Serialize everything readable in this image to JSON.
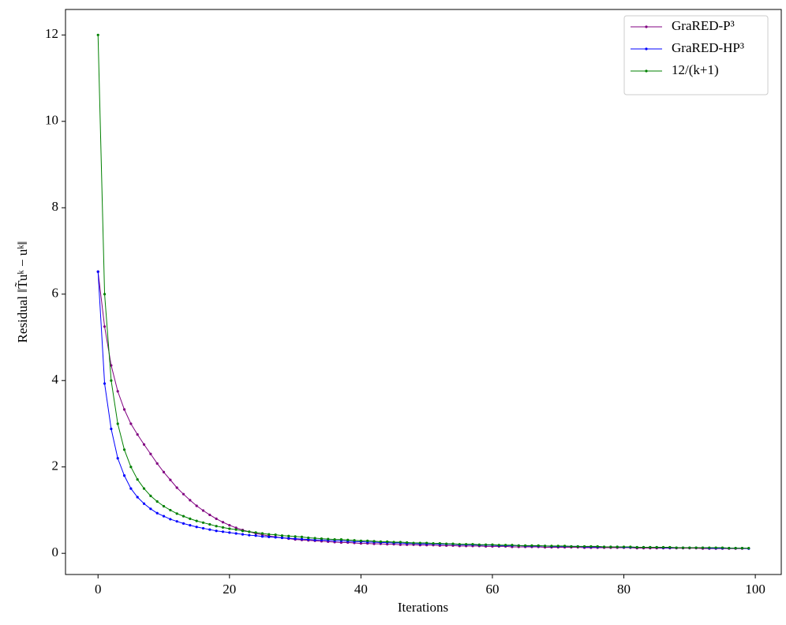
{
  "chart_data": {
    "type": "line",
    "x_label": "Iterations",
    "y_label": "Residual ‖T̃uᵏ − uᵏ‖",
    "x": [
      0,
      1,
      2,
      3,
      4,
      5,
      6,
      7,
      8,
      9,
      10,
      11,
      12,
      13,
      14,
      15,
      16,
      17,
      18,
      19,
      20,
      21,
      22,
      23,
      24,
      25,
      26,
      27,
      28,
      29,
      30,
      31,
      32,
      33,
      34,
      35,
      36,
      37,
      38,
      39,
      40,
      41,
      42,
      43,
      44,
      45,
      46,
      47,
      48,
      49,
      50,
      51,
      52,
      53,
      54,
      55,
      56,
      57,
      58,
      59,
      60,
      61,
      62,
      63,
      64,
      65,
      66,
      67,
      68,
      69,
      70,
      71,
      72,
      73,
      74,
      75,
      76,
      77,
      78,
      79,
      80,
      81,
      82,
      83,
      84,
      85,
      86,
      87,
      88,
      89,
      90,
      91,
      92,
      93,
      94,
      95,
      96,
      97,
      98,
      99
    ],
    "series": [
      {
        "name": "GraRED-P³",
        "color": "#800080",
        "values": [
          6.52,
          5.25,
          4.35,
          3.75,
          3.33,
          3.0,
          2.75,
          2.52,
          2.3,
          2.08,
          1.88,
          1.7,
          1.52,
          1.37,
          1.23,
          1.1,
          0.99,
          0.89,
          0.8,
          0.72,
          0.65,
          0.59,
          0.54,
          0.5,
          0.46,
          0.43,
          0.4,
          0.38,
          0.36,
          0.34,
          0.32,
          0.31,
          0.3,
          0.29,
          0.28,
          0.27,
          0.26,
          0.25,
          0.25,
          0.24,
          0.23,
          0.23,
          0.22,
          0.22,
          0.21,
          0.21,
          0.2,
          0.2,
          0.2,
          0.19,
          0.19,
          0.19,
          0.18,
          0.18,
          0.18,
          0.17,
          0.17,
          0.17,
          0.17,
          0.16,
          0.16,
          0.16,
          0.16,
          0.15,
          0.15,
          0.15,
          0.15,
          0.15,
          0.14,
          0.14,
          0.14,
          0.14,
          0.14,
          0.14,
          0.13,
          0.13,
          0.13,
          0.13,
          0.13,
          0.13,
          0.13,
          0.13,
          0.12,
          0.12,
          0.12,
          0.12,
          0.12,
          0.12,
          0.12,
          0.12,
          0.12,
          0.12,
          0.11,
          0.11,
          0.11,
          0.11,
          0.11,
          0.11,
          0.11,
          0.11
        ]
      },
      {
        "name": "GraRED-HP³",
        "color": "#0000ff",
        "values": [
          6.52,
          3.93,
          2.88,
          2.2,
          1.8,
          1.5,
          1.3,
          1.15,
          1.03,
          0.93,
          0.86,
          0.79,
          0.74,
          0.69,
          0.65,
          0.61,
          0.58,
          0.55,
          0.52,
          0.5,
          0.48,
          0.46,
          0.44,
          0.42,
          0.41,
          0.39,
          0.38,
          0.37,
          0.36,
          0.35,
          0.34,
          0.33,
          0.32,
          0.31,
          0.31,
          0.3,
          0.29,
          0.29,
          0.28,
          0.27,
          0.27,
          0.26,
          0.26,
          0.25,
          0.25,
          0.24,
          0.24,
          0.23,
          0.23,
          0.22,
          0.22,
          0.22,
          0.21,
          0.21,
          0.21,
          0.2,
          0.2,
          0.2,
          0.19,
          0.19,
          0.19,
          0.18,
          0.18,
          0.18,
          0.18,
          0.17,
          0.17,
          0.17,
          0.17,
          0.16,
          0.16,
          0.16,
          0.16,
          0.16,
          0.15,
          0.15,
          0.15,
          0.15,
          0.15,
          0.15,
          0.14,
          0.14,
          0.14,
          0.14,
          0.14,
          0.14,
          0.13,
          0.13,
          0.13,
          0.13,
          0.13,
          0.13,
          0.13,
          0.12,
          0.12,
          0.12,
          0.12,
          0.12,
          0.12,
          0.11
        ]
      },
      {
        "name": "12/(k+1)",
        "color": "#008000",
        "values": [
          12,
          6,
          4,
          3,
          2.4,
          2,
          1.71,
          1.5,
          1.33,
          1.2,
          1.09,
          1,
          0.92,
          0.86,
          0.8,
          0.75,
          0.71,
          0.67,
          0.63,
          0.6,
          0.57,
          0.55,
          0.52,
          0.5,
          0.48,
          0.46,
          0.44,
          0.43,
          0.41,
          0.4,
          0.39,
          0.38,
          0.36,
          0.35,
          0.34,
          0.33,
          0.32,
          0.32,
          0.31,
          0.3,
          0.29,
          0.29,
          0.28,
          0.27,
          0.27,
          0.26,
          0.26,
          0.25,
          0.24,
          0.24,
          0.24,
          0.23,
          0.23,
          0.22,
          0.22,
          0.21,
          0.21,
          0.21,
          0.2,
          0.2,
          0.2,
          0.19,
          0.19,
          0.19,
          0.18,
          0.18,
          0.18,
          0.18,
          0.17,
          0.17,
          0.17,
          0.17,
          0.16,
          0.16,
          0.16,
          0.16,
          0.16,
          0.15,
          0.15,
          0.15,
          0.15,
          0.15,
          0.14,
          0.14,
          0.14,
          0.14,
          0.14,
          0.14,
          0.13,
          0.13,
          0.13,
          0.13,
          0.13,
          0.13,
          0.13,
          0.13,
          0.12,
          0.12,
          0.12,
          0.12
        ]
      }
    ],
    "xlim": [
      -4.95,
      103.95
    ],
    "xticks": [
      0,
      20,
      40,
      60,
      80,
      100
    ],
    "ylim": [
      -0.49,
      12.59
    ],
    "yticks": [
      0,
      2,
      4,
      6,
      8,
      10,
      12
    ],
    "grid": false,
    "legend": "upper right"
  }
}
